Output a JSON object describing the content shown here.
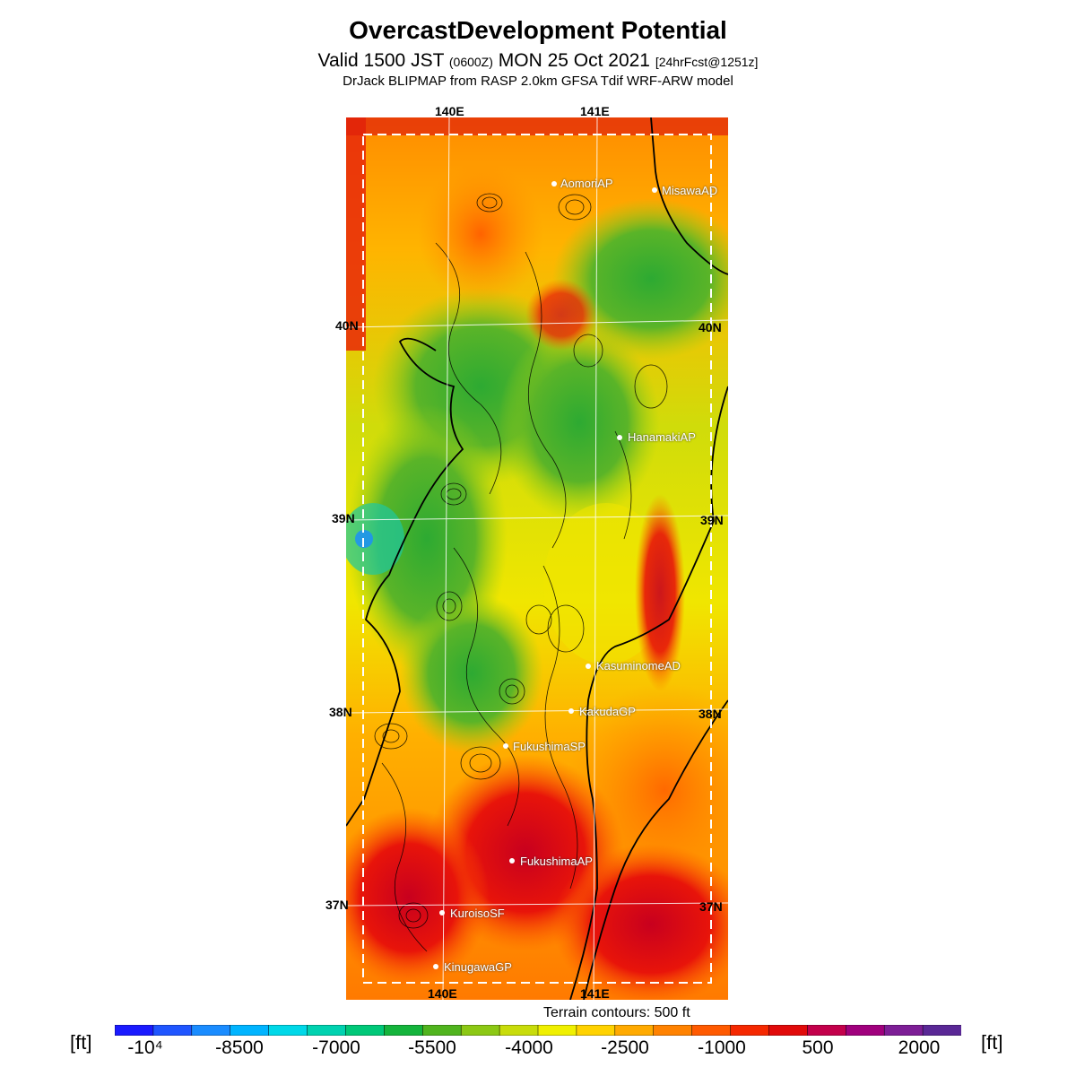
{
  "header": {
    "title": "OvercastDevelopment Potential",
    "valid_prefix": "Valid 1500 JST",
    "utc_tag": "(0600Z)",
    "valid_date": "MON 25 Oct 2021",
    "forecast_tag": "[24hrFcst@1251z]",
    "model_line": "DrJack BLIPMAP from RASP 2.0km GFSA Tdif WRF-ARW model"
  },
  "map": {
    "lon_labels": [
      "140E",
      "141E"
    ],
    "lat_labels": [
      "40N",
      "39N",
      "38N",
      "37N"
    ],
    "locations": [
      {
        "name": "AomoriAP"
      },
      {
        "name": "MisawaAD"
      },
      {
        "name": "HanamakiAP"
      },
      {
        "name": "KasuminomeAD"
      },
      {
        "name": "KakudaGP"
      },
      {
        "name": "FukushimaSP"
      },
      {
        "name": "FukushimaAP"
      },
      {
        "name": "KuroisoSF"
      },
      {
        "name": "KinugawaGP"
      }
    ],
    "contour_note": "Terrain contours: 500 ft"
  },
  "colorbar": {
    "unit_left": "[ft]",
    "unit_right": "[ft]",
    "labels": [
      "-10⁴",
      "-8500",
      "-7000",
      "-5500",
      "-4000",
      "-2500",
      "-1000",
      "500",
      "2000"
    ],
    "colors": [
      "#1a1aff",
      "#1f55ff",
      "#1a8cff",
      "#00b4ff",
      "#00d8e8",
      "#00d2b0",
      "#00c878",
      "#14b43c",
      "#50b41e",
      "#8cc814",
      "#c8dc0a",
      "#f0f000",
      "#ffd200",
      "#ffaa00",
      "#ff8200",
      "#ff5a00",
      "#f52800",
      "#e10a0a",
      "#c3004b",
      "#a0007d",
      "#7d1e96",
      "#5a2896"
    ]
  }
}
